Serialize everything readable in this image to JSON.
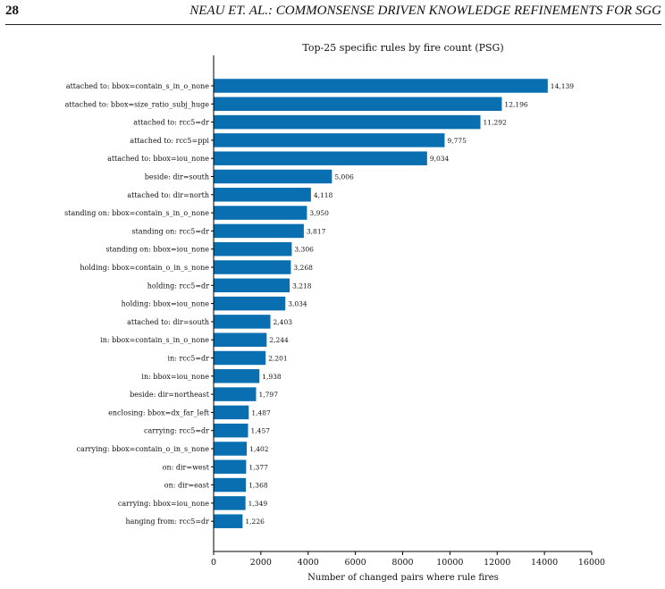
{
  "page": {
    "number": "28",
    "running_title": "NEAU ET. AL.: COMMONSENSE DRIVEN KNOWLEDGE REFINEMENTS FOR SGG"
  },
  "colors": {
    "bar": "#0a6fb0",
    "axis": "#000000",
    "text": "#111111"
  },
  "chart_data": {
    "type": "bar",
    "orientation": "horizontal",
    "title": "Top-25 specific rules by fire count (PSG)",
    "xlabel": "Number of changed pairs where rule fires",
    "ylabel": "",
    "xlim": [
      0,
      16000
    ],
    "xticks": [
      0,
      2000,
      4000,
      6000,
      8000,
      10000,
      12000,
      14000,
      16000
    ],
    "grid": false,
    "categories": [
      "attached to: bbox=contain_s_in_o_none",
      "attached to: bbox=size_ratio_subj_huge",
      "attached to: rcc5=dr",
      "attached to: rcc5=ppi",
      "attached to: bbox=iou_none",
      "beside: dir=south",
      "attached to: dir=north",
      "standing on: bbox=contain_s_in_o_none",
      "standing on: rcc5=dr",
      "standing on: bbox=iou_none",
      "holding: bbox=contain_o_in_s_none",
      "holding: rcc5=dr",
      "holding: bbox=iou_none",
      "attached to: dir=south",
      "in: bbox=contain_s_in_o_none",
      "in: rcc5=dr",
      "in: bbox=iou_none",
      "beside: dir=northeast",
      "enclosing: bbox=dx_far_left",
      "carrying: rcc5=dr",
      "carrying: bbox=contain_o_in_s_none",
      "on: dir=west",
      "on: dir=east",
      "carrying: bbox=iou_none",
      "hanging from: rcc5=dr"
    ],
    "values": [
      14139,
      12196,
      11292,
      9775,
      9034,
      5006,
      4118,
      3950,
      3817,
      3306,
      3268,
      3218,
      3034,
      2403,
      2244,
      2201,
      1938,
      1797,
      1487,
      1457,
      1402,
      1377,
      1368,
      1349,
      1226
    ],
    "value_labels": [
      "14,139",
      "12,196",
      "11,292",
      "9,775",
      "9,034",
      "5,006",
      "4,118",
      "3,950",
      "3,817",
      "3,306",
      "3,268",
      "3,218",
      "3,034",
      "2,403",
      "2,244",
      "2,201",
      "1,938",
      "1,797",
      "1,487",
      "1,457",
      "1,402",
      "1,377",
      "1,368",
      "1,349",
      "1,226"
    ]
  }
}
